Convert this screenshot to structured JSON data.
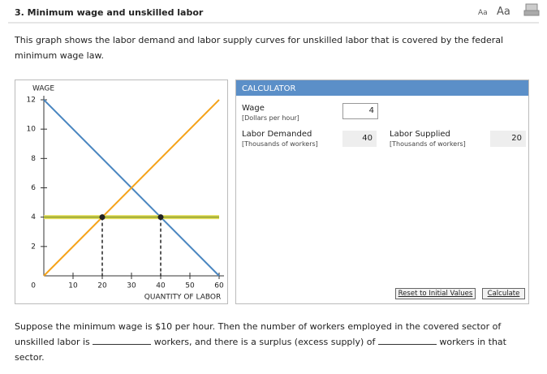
{
  "header": {
    "title": "3. Minimum wage and unskilled labor",
    "font_small": "Aa",
    "font_large": "Aa"
  },
  "intro": "This graph shows the labor demand and labor supply curves for unskilled labor that is covered by the federal minimum wage law.",
  "chart_data": {
    "type": "line",
    "ylabel": "WAGE",
    "xlabel": "QUANTITY OF LABOR",
    "xlim": [
      0,
      60
    ],
    "ylim": [
      0,
      12
    ],
    "xticks": [
      10,
      20,
      30,
      40,
      50,
      60
    ],
    "yticks": [
      0,
      2,
      4,
      6,
      8,
      10,
      12
    ],
    "series": [
      {
        "color": "#4a86c0",
        "x": [
          0,
          60
        ],
        "values": [
          12,
          0
        ]
      },
      {
        "color": "#f5a31a",
        "x": [
          0,
          60
        ],
        "values": [
          0,
          12
        ]
      },
      {
        "color": "#9aa832",
        "x": [
          0,
          60
        ],
        "values": [
          4,
          4
        ]
      }
    ],
    "points": {
      "color": "#222222",
      "x": [
        20,
        40
      ],
      "values": [
        4,
        4
      ]
    }
  },
  "calculator": {
    "title": "CALCULATOR",
    "wage": {
      "label": "Wage",
      "unit": "[Dollars per hour]",
      "value": 4
    },
    "demanded": {
      "label": "Labor Demanded",
      "unit": "[Thousands of workers]",
      "value": 40
    },
    "supplied": {
      "label": "Labor Supplied",
      "unit": "[Thousands of workers]",
      "value": 20
    },
    "reset": "Reset to Initial Values",
    "calculate": "Calculate"
  },
  "question": {
    "part1": "Suppose the minimum wage is $10 per hour. Then the number of workers employed in the covered sector of unskilled labor is",
    "part2": "workers, and there is a surplus (excess supply) of",
    "part3": "workers in that sector."
  }
}
